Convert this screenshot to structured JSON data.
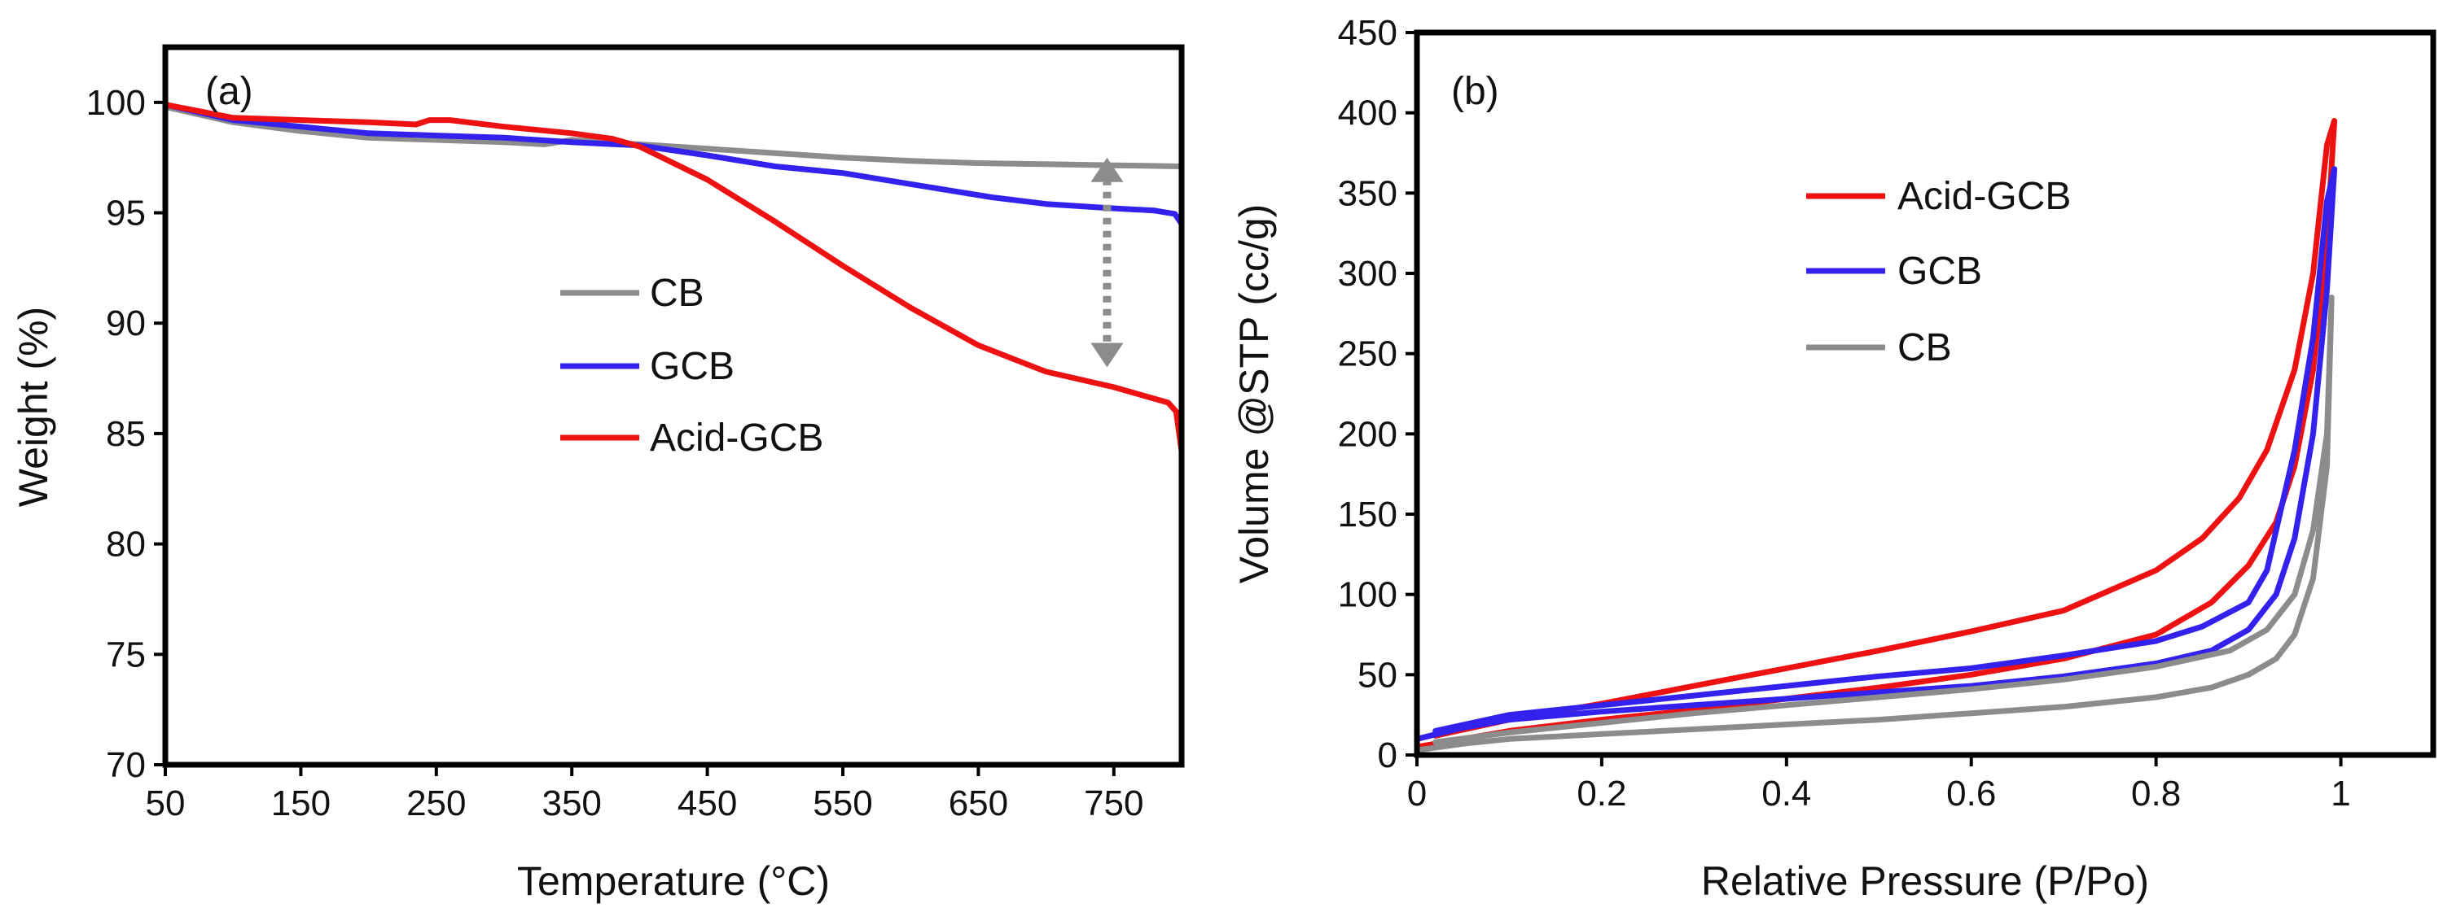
{
  "chart_data": [
    {
      "type": "line",
      "panel_label": "(a)",
      "xlabel": "Temperature (°C)",
      "ylabel": "Weight (%)",
      "xlim": [
        50,
        800
      ],
      "ylim": [
        70,
        102.5
      ],
      "xticks": [
        "50",
        "150",
        "250",
        "350",
        "450",
        "550",
        "650",
        "750"
      ],
      "yticks": [
        "70",
        "75",
        "80",
        "85",
        "90",
        "95",
        "100"
      ],
      "legend_position": "center",
      "annotation": "dashed double-headed arrow at 745 °C spanning 88 to 97.5 %",
      "arrow": {
        "x": 745,
        "y1": 97.5,
        "y2": 88
      },
      "series": [
        {
          "name": "CB",
          "color": "#8c8c8c",
          "points": [
            [
              50,
              99.8
            ],
            [
              100,
              99.1
            ],
            [
              150,
              98.7
            ],
            [
              200,
              98.4
            ],
            [
              250,
              98.3
            ],
            [
              300,
              98.2
            ],
            [
              330,
              98.1
            ],
            [
              350,
              98.3
            ],
            [
              400,
              98.1
            ],
            [
              450,
              97.9
            ],
            [
              500,
              97.7
            ],
            [
              550,
              97.5
            ],
            [
              600,
              97.35
            ],
            [
              650,
              97.25
            ],
            [
              700,
              97.2
            ],
            [
              750,
              97.15
            ],
            [
              800,
              97.1
            ]
          ]
        },
        {
          "name": "GCB",
          "color": "#3322ee",
          "points": [
            [
              50,
              99.9
            ],
            [
              100,
              99.2
            ],
            [
              150,
              98.9
            ],
            [
              200,
              98.6
            ],
            [
              250,
              98.5
            ],
            [
              300,
              98.4
            ],
            [
              350,
              98.2
            ],
            [
              400,
              98.05
            ],
            [
              450,
              97.6
            ],
            [
              500,
              97.1
            ],
            [
              550,
              96.8
            ],
            [
              600,
              96.3
            ],
            [
              630,
              96.0
            ],
            [
              660,
              95.7
            ],
            [
              700,
              95.4
            ],
            [
              750,
              95.2
            ],
            [
              780,
              95.1
            ],
            [
              795,
              94.95
            ],
            [
              800,
              94.5
            ]
          ]
        },
        {
          "name": "Acid-GCB",
          "color": "#ee1111",
          "points": [
            [
              50,
              99.9
            ],
            [
              100,
              99.3
            ],
            [
              150,
              99.2
            ],
            [
              200,
              99.1
            ],
            [
              235,
              99.0
            ],
            [
              245,
              99.2
            ],
            [
              260,
              99.2
            ],
            [
              300,
              98.9
            ],
            [
              350,
              98.6
            ],
            [
              380,
              98.35
            ],
            [
              400,
              98.0
            ],
            [
              450,
              96.5
            ],
            [
              500,
              94.6
            ],
            [
              550,
              92.6
            ],
            [
              600,
              90.7
            ],
            [
              650,
              89.0
            ],
            [
              700,
              87.8
            ],
            [
              750,
              87.1
            ],
            [
              790,
              86.4
            ],
            [
              796,
              86.0
            ],
            [
              800,
              84.2
            ]
          ]
        }
      ]
    },
    {
      "type": "line",
      "panel_label": "(b)",
      "xlabel": "Relative Pressure (P/Po)",
      "ylabel": "Volume @STP (cc/g)",
      "xlim": [
        0,
        1.1
      ],
      "ylim": [
        0,
        450
      ],
      "xticks": [
        "0",
        "0.2",
        "0.4",
        "0.6",
        "0.8",
        "1"
      ],
      "yticks": [
        "0",
        "50",
        "100",
        "150",
        "200",
        "250",
        "300",
        "350",
        "400",
        "450"
      ],
      "legend_position": "upper-center",
      "series": [
        {
          "name": "Acid-GCB",
          "color": "#ee1111",
          "points": [
            [
              0.0,
              5
            ],
            [
              0.05,
              10
            ],
            [
              0.1,
              15
            ],
            [
              0.2,
              22
            ],
            [
              0.3,
              28
            ],
            [
              0.4,
              35
            ],
            [
              0.5,
              42
            ],
            [
              0.6,
              50
            ],
            [
              0.7,
              60
            ],
            [
              0.8,
              75
            ],
            [
              0.86,
              95
            ],
            [
              0.9,
              118
            ],
            [
              0.93,
              145
            ],
            [
              0.95,
              180
            ],
            [
              0.97,
              240
            ],
            [
              0.985,
              320
            ],
            [
              0.993,
              395
            ],
            [
              0.985,
              380
            ],
            [
              0.97,
              300
            ],
            [
              0.95,
              240
            ],
            [
              0.92,
              190
            ],
            [
              0.89,
              160
            ],
            [
              0.85,
              135
            ],
            [
              0.8,
              115
            ],
            [
              0.7,
              90
            ],
            [
              0.6,
              77
            ],
            [
              0.5,
              65
            ],
            [
              0.4,
              54
            ],
            [
              0.3,
              43
            ],
            [
              0.2,
              32
            ],
            [
              0.1,
              22
            ],
            [
              0.02,
              12
            ]
          ]
        },
        {
          "name": "GCB",
          "color": "#3322ee",
          "points": [
            [
              0.0,
              10
            ],
            [
              0.05,
              17
            ],
            [
              0.1,
              22
            ],
            [
              0.2,
              27
            ],
            [
              0.3,
              31
            ],
            [
              0.4,
              35
            ],
            [
              0.5,
              39
            ],
            [
              0.6,
              43
            ],
            [
              0.7,
              49
            ],
            [
              0.8,
              57
            ],
            [
              0.86,
              65
            ],
            [
              0.9,
              78
            ],
            [
              0.93,
              100
            ],
            [
              0.95,
              135
            ],
            [
              0.97,
              200
            ],
            [
              0.985,
              290
            ],
            [
              0.993,
              365
            ],
            [
              0.985,
              345
            ],
            [
              0.97,
              260
            ],
            [
              0.95,
              190
            ],
            [
              0.92,
              115
            ],
            [
              0.9,
              95
            ],
            [
              0.85,
              80
            ],
            [
              0.8,
              71
            ],
            [
              0.7,
              62
            ],
            [
              0.6,
              54
            ],
            [
              0.5,
              49
            ],
            [
              0.4,
              43
            ],
            [
              0.3,
              37
            ],
            [
              0.2,
              31
            ],
            [
              0.1,
              25
            ],
            [
              0.02,
              15
            ]
          ]
        },
        {
          "name": "CB",
          "color": "#8c8c8c",
          "points": [
            [
              0.0,
              3
            ],
            [
              0.05,
              7
            ],
            [
              0.1,
              10
            ],
            [
              0.2,
              13
            ],
            [
              0.3,
              16
            ],
            [
              0.4,
              19
            ],
            [
              0.5,
              22
            ],
            [
              0.6,
              26
            ],
            [
              0.7,
              30
            ],
            [
              0.8,
              36
            ],
            [
              0.86,
              42
            ],
            [
              0.9,
              50
            ],
            [
              0.93,
              60
            ],
            [
              0.95,
              75
            ],
            [
              0.97,
              110
            ],
            [
              0.985,
              180
            ],
            [
              0.99,
              285
            ],
            [
              0.985,
              200
            ],
            [
              0.97,
              140
            ],
            [
              0.95,
              100
            ],
            [
              0.92,
              78
            ],
            [
              0.88,
              65
            ],
            [
              0.8,
              55
            ],
            [
              0.7,
              47
            ],
            [
              0.6,
              41
            ],
            [
              0.5,
              36
            ],
            [
              0.4,
              31
            ],
            [
              0.3,
              26
            ],
            [
              0.2,
              20
            ],
            [
              0.1,
              14
            ],
            [
              0.02,
              8
            ]
          ]
        }
      ]
    }
  ]
}
